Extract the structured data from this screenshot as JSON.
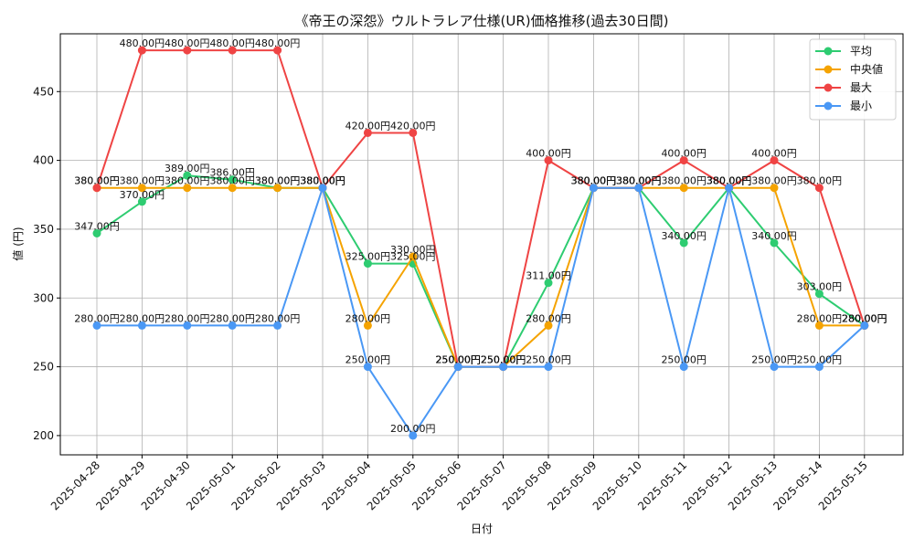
{
  "chart_data": {
    "type": "line",
    "title": "《帝王の深怨》ウルトラレア仕様(UR)価格推移(過去30日間)",
    "xlabel": "日付",
    "ylabel": "値 (円)",
    "ylim": [
      186,
      492
    ],
    "yticks": [
      200,
      250,
      300,
      350,
      400,
      450
    ],
    "grid": true,
    "legend_position": "top-right",
    "value_suffix": "円",
    "categories": [
      "2025-04-28",
      "2025-04-29",
      "2025-04-30",
      "2025-05-01",
      "2025-05-02",
      "2025-05-03",
      "2025-05-04",
      "2025-05-05",
      "2025-05-06",
      "2025-05-07",
      "2025-05-08",
      "2025-05-09",
      "2025-05-10",
      "2025-05-11",
      "2025-05-12",
      "2025-05-13",
      "2025-05-14",
      "2025-05-15"
    ],
    "series": [
      {
        "name": "平均",
        "color": "#2ecc71",
        "values": [
          347,
          370,
          389,
          386,
          380,
          380,
          325,
          325,
          250,
          250,
          311,
          380,
          380,
          340,
          380,
          340,
          303,
          280
        ]
      },
      {
        "name": "中央値",
        "color": "#f5a300",
        "values": [
          380,
          380,
          380,
          380,
          380,
          380,
          280,
          330,
          250,
          250,
          280,
          380,
          380,
          380,
          380,
          380,
          280,
          280
        ]
      },
      {
        "name": "最大",
        "color": "#ef4444",
        "values": [
          380,
          480,
          480,
          480,
          480,
          380,
          420,
          420,
          250,
          250,
          400,
          380,
          380,
          400,
          380,
          400,
          380,
          280
        ]
      },
      {
        "name": "最小",
        "color": "#4a98f5",
        "values": [
          280,
          280,
          280,
          280,
          280,
          380,
          250,
          200,
          250,
          250,
          250,
          380,
          380,
          250,
          380,
          250,
          250,
          280
        ]
      }
    ]
  }
}
